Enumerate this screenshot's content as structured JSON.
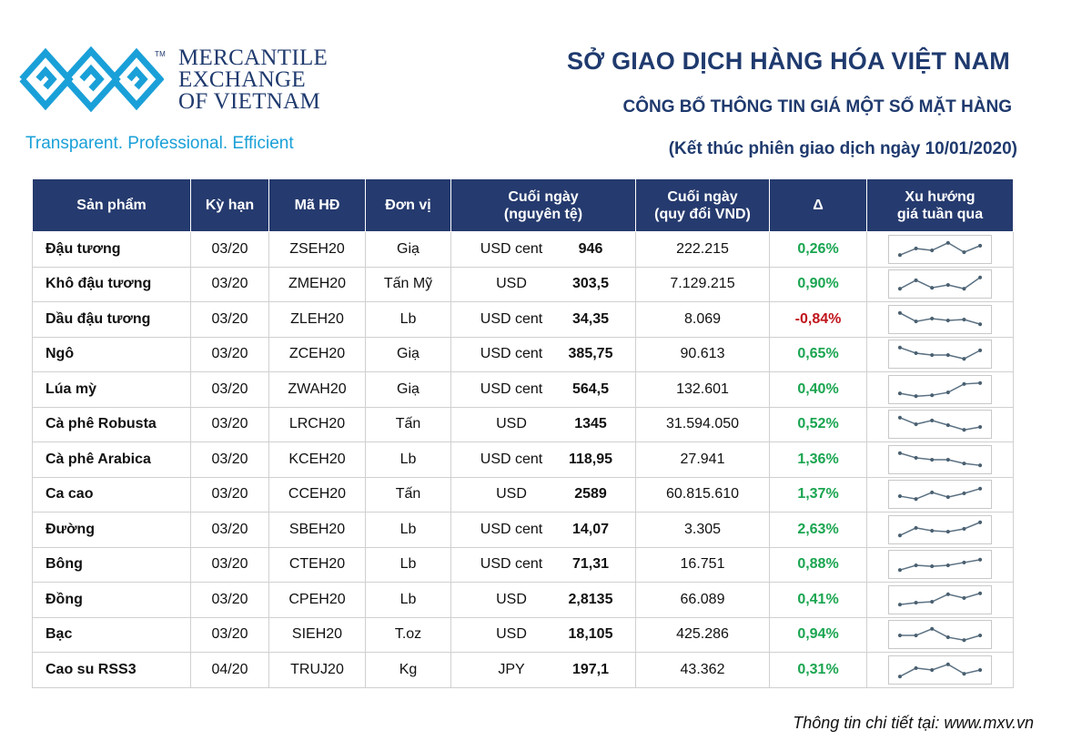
{
  "logo": {
    "line1": "MERCANTILE",
    "line2": "EXCHANGE",
    "line3": "OF VIETNAM",
    "trademark": "TM",
    "tagline": "Transparent. Professional. Efficient",
    "color_primary": "#1f3a6e",
    "color_accent": "#1aa0d8"
  },
  "header": {
    "title": "SỞ GIAO DỊCH HÀNG HÓA VIỆT NAM",
    "subtitle": "CÔNG BỐ THÔNG TIN GIÁ MỘT SỐ MẶT HÀNG",
    "session": "(Kết thúc phiên giao dịch ngày 10/01/2020)"
  },
  "table": {
    "columns": {
      "product": "Sản phẩm",
      "term": "Kỳ hạn",
      "code": "Mã HĐ",
      "unit": "Đơn vị",
      "close_orig_1": "Cuối ngày",
      "close_orig_2": "(nguyên tệ)",
      "close_vnd_1": "Cuối ngày",
      "close_vnd_2": "(quy đổi VND)",
      "delta": "Δ",
      "trend_1": "Xu hướng",
      "trend_2": "giá tuần qua"
    },
    "header_color": "#253a6e",
    "positive_color": "#1aa550",
    "negative_color": "#c0141c",
    "rows": [
      {
        "product": "Đậu tương",
        "term": "03/20",
        "code": "ZSEH20",
        "unit": "Giạ",
        "currency": "USD cent",
        "close": "946",
        "vnd": "222.215",
        "delta": "0,26%",
        "trend": [
          0.2,
          0.55,
          0.45,
          0.85,
          0.35,
          0.7
        ]
      },
      {
        "product": "Khô đậu tương",
        "term": "03/20",
        "code": "ZMEH20",
        "unit": "Tấn Mỹ",
        "currency": "USD",
        "close": "303,5",
        "vnd": "7.129.215",
        "delta": "0,90%",
        "trend": [
          0.25,
          0.7,
          0.3,
          0.45,
          0.25,
          0.85
        ]
      },
      {
        "product": "Dầu đậu tương",
        "term": "03/20",
        "code": "ZLEH20",
        "unit": "Lb",
        "currency": "USD cent",
        "close": "34,35",
        "vnd": "8.069",
        "delta": "-0,84%",
        "trend": [
          0.85,
          0.4,
          0.55,
          0.45,
          0.5,
          0.25
        ]
      },
      {
        "product": "Ngô",
        "term": "03/20",
        "code": "ZCEH20",
        "unit": "Giạ",
        "currency": "USD cent",
        "close": "385,75",
        "vnd": "90.613",
        "delta": "0,65%",
        "trend": [
          0.85,
          0.55,
          0.45,
          0.45,
          0.25,
          0.7
        ]
      },
      {
        "product": "Lúa mỳ",
        "term": "03/20",
        "code": "ZWAH20",
        "unit": "Giạ",
        "currency": "USD cent",
        "close": "564,5",
        "vnd": "132.601",
        "delta": "0,40%",
        "trend": [
          0.3,
          0.15,
          0.2,
          0.35,
          0.8,
          0.85
        ]
      },
      {
        "product": "Cà phê Robusta",
        "term": "03/20",
        "code": "LRCH20",
        "unit": "Tấn",
        "currency": "USD",
        "close": "1345",
        "vnd": "31.594.050",
        "delta": "0,52%",
        "trend": [
          0.85,
          0.5,
          0.7,
          0.45,
          0.2,
          0.35
        ]
      },
      {
        "product": "Cà phê Arabica",
        "term": "03/20",
        "code": "KCEH20",
        "unit": "Lb",
        "currency": "USD cent",
        "close": "118,95",
        "vnd": "27.941",
        "delta": "1,36%",
        "trend": [
          0.85,
          0.6,
          0.5,
          0.5,
          0.3,
          0.2
        ]
      },
      {
        "product": "Ca cao",
        "term": "03/20",
        "code": "CCEH20",
        "unit": "Tấn",
        "currency": "USD",
        "close": "2589",
        "vnd": "60.815.610",
        "delta": "1,37%",
        "trend": [
          0.4,
          0.25,
          0.6,
          0.35,
          0.55,
          0.8
        ]
      },
      {
        "product": "Đường",
        "term": "03/20",
        "code": "SBEH20",
        "unit": "Lb",
        "currency": "USD cent",
        "close": "14,07",
        "vnd": "3.305",
        "delta": "2,63%",
        "trend": [
          0.2,
          0.6,
          0.45,
          0.4,
          0.55,
          0.9
        ]
      },
      {
        "product": "Bông",
        "term": "03/20",
        "code": "CTEH20",
        "unit": "Lb",
        "currency": "USD cent",
        "close": "71,31",
        "vnd": "16.751",
        "delta": "0,88%",
        "trend": [
          0.2,
          0.45,
          0.4,
          0.45,
          0.6,
          0.75
        ]
      },
      {
        "product": "Đồng",
        "term": "03/20",
        "code": "CPEH20",
        "unit": "Lb",
        "currency": "USD",
        "close": "2,8135",
        "vnd": "66.089",
        "delta": "0,41%",
        "trend": [
          0.25,
          0.35,
          0.4,
          0.8,
          0.6,
          0.85
        ]
      },
      {
        "product": "Bạc",
        "term": "03/20",
        "code": "SIEH20",
        "unit": "T.oz",
        "currency": "USD",
        "close": "18,105",
        "vnd": "425.286",
        "delta": "0,94%",
        "trend": [
          0.45,
          0.45,
          0.8,
          0.35,
          0.2,
          0.45
        ]
      },
      {
        "product": "Cao su RSS3",
        "term": "04/20",
        "code": "TRUJ20",
        "unit": "Kg",
        "currency": "JPY",
        "close": "197,1",
        "vnd": "43.362",
        "delta": "0,31%",
        "trend": [
          0.15,
          0.6,
          0.5,
          0.8,
          0.3,
          0.5
        ]
      }
    ]
  },
  "footer": {
    "text": "Thông tin chi tiết tại: www.mxv.vn"
  }
}
